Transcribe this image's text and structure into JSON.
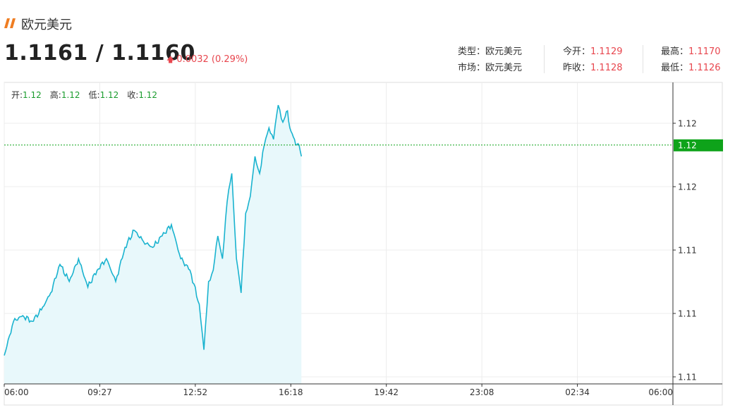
{
  "header": {
    "logo_icon": "double-slash-logo-icon",
    "title": "欧元美元",
    "price": "1.1161 / 1.1160",
    "change_icon": "up-arrow-icon",
    "change": "0.0032 (0.29%)"
  },
  "info": {
    "type_label": "类型：",
    "type_value": "欧元美元",
    "market_label": "市场：",
    "market_value": "欧元美元",
    "open_label": "今开：",
    "open_value": "1.1129",
    "prev_close_label": "昨收：",
    "prev_close_value": "1.1128",
    "high_label": "最高：",
    "high_value": "1.1170",
    "low_label": "最低：",
    "low_value": "1.1126"
  },
  "ohlc": {
    "open_label": "开:",
    "open_value": "1.12",
    "high_label": "高:",
    "high_value": "1.12",
    "low_label": "低:",
    "low_value": "1.12",
    "close_label": "收:",
    "close_value": "1.12"
  },
  "colors": {
    "line": "#1ab3cf",
    "area": "#e8f8fb",
    "current_price": "#0ea31a",
    "up": "#e8464e"
  },
  "chart_data": {
    "type": "area",
    "x_ticks": [
      "06:00",
      "09:27",
      "12:52",
      "16:18",
      "19:42",
      "23:08",
      "02:34",
      "06:00"
    ],
    "y_ticks": [
      "1.12",
      "1.12",
      "1.11",
      "1.11",
      "1.11"
    ],
    "ylim": [
      1.1121,
      1.1174
    ],
    "current_price_label": "1.12",
    "current_price": 1.1163,
    "grid": true,
    "series": [
      {
        "x": [
          "06:00",
          "06:20",
          "06:40",
          "07:00",
          "07:20",
          "07:40",
          "08:00",
          "08:20",
          "08:40",
          "09:00",
          "09:20",
          "09:40",
          "10:00",
          "10:20",
          "10:40",
          "11:00",
          "11:20",
          "11:40",
          "12:00",
          "12:20",
          "12:40",
          "13:00",
          "13:10",
          "13:20",
          "13:30",
          "13:40",
          "13:50",
          "14:00",
          "14:10",
          "14:20",
          "14:30",
          "14:40",
          "14:50",
          "15:00",
          "15:10",
          "15:20",
          "15:30",
          "15:40",
          "15:50",
          "16:00",
          "16:05",
          "16:10",
          "16:15",
          "16:20",
          "16:25",
          "16:30",
          "16:35",
          "16:40"
        ],
        "values": [
          1.1126,
          1.1132,
          1.1133,
          1.1132,
          1.1134,
          1.1137,
          1.1142,
          1.1139,
          1.1143,
          1.1138,
          1.1141,
          1.1143,
          1.1139,
          1.1145,
          1.1148,
          1.1146,
          1.1145,
          1.1147,
          1.1149,
          1.1143,
          1.1141,
          1.1135,
          1.1127,
          1.1139,
          1.1141,
          1.1147,
          1.1143,
          1.1153,
          1.1158,
          1.1143,
          1.1137,
          1.1151,
          1.1154,
          1.1161,
          1.1158,
          1.1163,
          1.1166,
          1.1164,
          1.117,
          1.1167,
          1.1168,
          1.1169,
          1.1166,
          1.1165,
          1.1164,
          1.1163,
          1.1163,
          1.1161
        ]
      }
    ]
  }
}
